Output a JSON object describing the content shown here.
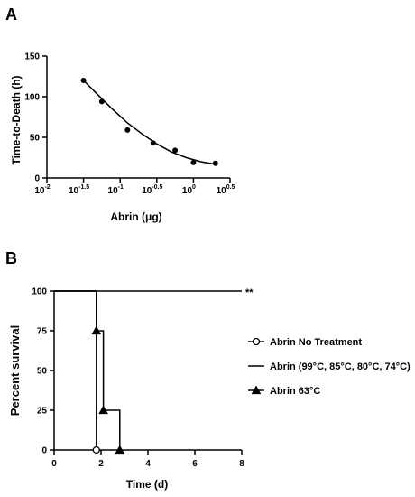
{
  "figure": {
    "panel_a_label": "A",
    "panel_b_label": "B"
  },
  "chart_data": [
    {
      "type": "scatter",
      "title": "",
      "xlabel_text": "Abrin (",
      "xlabel_unit": "μg",
      "xlabel_close": ")",
      "ylabel": "Time-to-Death (h)",
      "x_scale": "log10",
      "x_tick_base": "10",
      "x_tick_exponents": [
        "-2",
        "-1.5",
        "-1",
        "-0.5",
        "0",
        "0.5"
      ],
      "x_tick_values": [
        0.01,
        0.0316,
        0.1,
        0.316,
        1,
        3.16
      ],
      "xlim": [
        0.01,
        3.16
      ],
      "y_ticks": [
        "0",
        "50",
        "100",
        "150"
      ],
      "ylim": [
        0,
        150
      ],
      "grid": false,
      "series": [
        {
          "points": [
            {
              "x": 0.0316,
              "y": 120
            },
            {
              "x": 0.0562,
              "y": 94
            },
            {
              "x": 0.1259,
              "y": 59
            },
            {
              "x": 0.2818,
              "y": 43
            },
            {
              "x": 0.5623,
              "y": 34
            },
            {
              "x": 1.0,
              "y": 19
            },
            {
              "x": 1.995,
              "y": 18
            }
          ]
        }
      ],
      "fit_curve": {
        "x": [
          0.0316,
          0.05,
          0.08,
          0.125,
          0.2,
          0.316,
          0.5,
          0.8,
          1.26,
          2.0
        ],
        "y": [
          120,
          102,
          84,
          68,
          54,
          42,
          32,
          25,
          20,
          17
        ]
      }
    },
    {
      "type": "line",
      "subtype": "survival-step",
      "title": "",
      "xlabel": "Time (d)",
      "ylabel": "Percent survival",
      "x_ticks": [
        "0",
        "2",
        "4",
        "6",
        "8"
      ],
      "xlim": [
        0,
        8
      ],
      "y_ticks": [
        "0",
        "25",
        "50",
        "75",
        "100"
      ],
      "ylim": [
        0,
        100
      ],
      "grid": false,
      "legend_position": "right",
      "annotation": "**",
      "series": [
        {
          "name": "Abrin No Treatment",
          "marker": "circle",
          "steps": [
            [
              0,
              100
            ],
            [
              1.8,
              100
            ],
            [
              1.8,
              0
            ]
          ],
          "markers": [
            [
              1.8,
              0
            ]
          ]
        },
        {
          "name": "Abrin (99°C, 85°C, 80°C, 74°C)",
          "marker": "none",
          "steps": [
            [
              0,
              100
            ],
            [
              8,
              100
            ]
          ],
          "markers": []
        },
        {
          "name": "Abrin 63°C",
          "marker": "triangle",
          "steps": [
            [
              0,
              100
            ],
            [
              1.8,
              100
            ],
            [
              1.8,
              75
            ],
            [
              2.1,
              75
            ],
            [
              2.1,
              25
            ],
            [
              2.8,
              25
            ],
            [
              2.8,
              0
            ]
          ],
          "markers": [
            [
              1.8,
              75
            ],
            [
              2.1,
              25
            ],
            [
              2.8,
              0
            ]
          ]
        }
      ]
    }
  ]
}
